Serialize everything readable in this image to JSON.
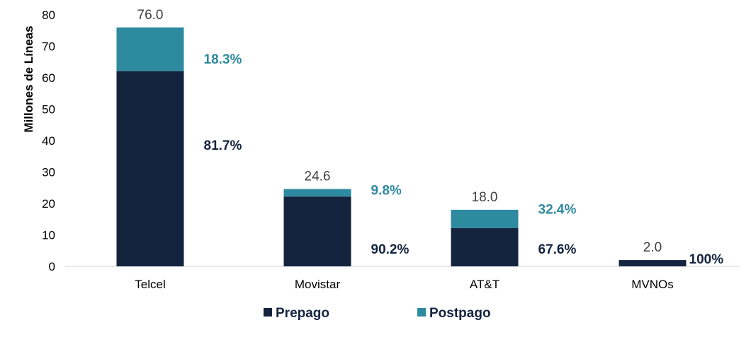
{
  "chart_data": {
    "type": "bar",
    "stacked": true,
    "title": "",
    "xlabel": "",
    "ylabel": "Millones de Líneas",
    "ylim": [
      0,
      80
    ],
    "yticks": [
      0,
      10,
      20,
      30,
      40,
      50,
      60,
      70,
      80
    ],
    "categories": [
      "Telcel",
      "Movistar",
      "AT&T",
      "MVNOs"
    ],
    "series": [
      {
        "name": "Prepago",
        "color": "#14243f",
        "values": [
          62.1,
          22.2,
          12.2,
          2.0
        ],
        "share_labels": [
          "81.7%",
          "90.2%",
          "67.6%",
          "100%"
        ]
      },
      {
        "name": "Postpago",
        "color": "#2e8a9e",
        "values": [
          13.9,
          2.4,
          5.8,
          0.0
        ],
        "share_labels": [
          "18.3%",
          "9.8%",
          "32.4%",
          ""
        ]
      }
    ],
    "total_labels": [
      "76.0",
      "24.6",
      "18.0",
      "2.0"
    ],
    "legend": {
      "position": "bottom",
      "items": [
        "Prepago",
        "Postpago"
      ]
    }
  }
}
